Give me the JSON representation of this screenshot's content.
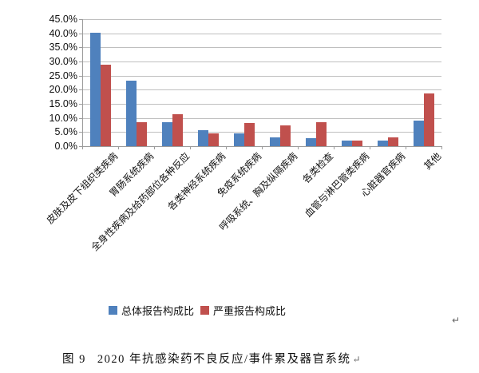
{
  "chart_data": {
    "type": "bar",
    "title": "",
    "xlabel": "",
    "ylabel": "",
    "categories": [
      "皮肤及皮下组织类疾病",
      "胃肠系统疾病",
      "全身性疾病及给药部位各种反应",
      "各类神经系统疾病",
      "免疫系统疾病",
      "呼吸系统、胸及纵隔疾病",
      "各类检查",
      "血管与淋巴管类疾病",
      "心脏器官疾病",
      "其他"
    ],
    "series": [
      {
        "name": "总体报告构成比",
        "color": "#4F81BD",
        "values": [
          40.3,
          23.2,
          8.6,
          5.6,
          4.4,
          3.0,
          2.9,
          2.0,
          2.1,
          9.2
        ]
      },
      {
        "name": "严重报告构成比",
        "color": "#C0504D",
        "values": [
          28.9,
          8.5,
          11.3,
          4.6,
          8.2,
          7.3,
          8.6,
          2.0,
          3.0,
          18.6
        ]
      }
    ],
    "ylim": [
      0,
      45
    ],
    "ytick_step": 5,
    "ytick_labels_top_down": [
      "45.0%",
      "40.0%",
      "35.0%",
      "30.0%",
      "25.0%",
      "20.0%",
      "15.0%",
      "10.0%",
      "5.0%",
      "0.0%"
    ],
    "grid": true,
    "legend_position": "bottom"
  },
  "legend": {
    "items": [
      {
        "label": "总体报告构成比",
        "color": "#4F81BD"
      },
      {
        "label": "严重报告构成比",
        "color": "#C0504D"
      }
    ]
  },
  "caption": {
    "figure_label": "图 9",
    "text": "2020 年抗感染药不良反应/事件累及器官系统",
    "mark": "↵"
  },
  "page": {
    "trailing_mark": "↵"
  }
}
